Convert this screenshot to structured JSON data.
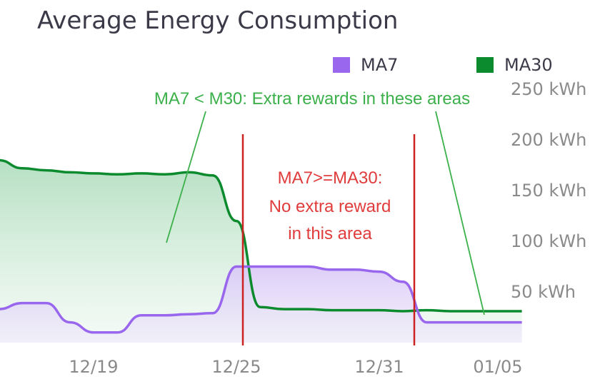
{
  "chart_data": {
    "type": "area",
    "title": "Average Energy Consumption",
    "x_ticks": [
      "12/19",
      "12/25",
      "12/31",
      "01/05"
    ],
    "y_ticks": [
      "50 kWh",
      "100 kWh",
      "150 kWh",
      "200 kWh",
      "250 kWh"
    ],
    "ylim": [
      0,
      260
    ],
    "x": [
      "12/14",
      "12/15",
      "12/16",
      "12/17",
      "12/18",
      "12/19",
      "12/20",
      "12/21",
      "12/22",
      "12/23",
      "12/24",
      "12/25",
      "12/26",
      "12/27",
      "12/28",
      "12/29",
      "12/30",
      "12/31",
      "01/01",
      "01/02",
      "01/03",
      "01/04",
      "01/05"
    ],
    "series": [
      {
        "name": "MA7",
        "color": "#9966ee",
        "values": [
          33,
          39,
          39,
          20,
          10,
          10,
          27,
          27,
          28,
          29,
          75,
          75,
          75,
          75,
          72,
          72,
          70,
          60,
          20,
          20,
          20,
          20,
          20
        ]
      },
      {
        "name": "MA30",
        "color": "#0c8a2e",
        "values": [
          180,
          172,
          170,
          168,
          167,
          166,
          167,
          166,
          168,
          165,
          120,
          35,
          33,
          33,
          32,
          32,
          32,
          31,
          32,
          31,
          31,
          31,
          31
        ]
      }
    ],
    "legend_position": "top-right",
    "annotations": {
      "green_note": "MA7 < M30: Extra rewards in these areas",
      "red_note_lines": [
        "MA7>=MA30:",
        "No extra reward",
        "in this area"
      ]
    },
    "annotation_colors": {
      "green": "#3cb04a",
      "red": "#cc2222"
    },
    "grid": false
  }
}
